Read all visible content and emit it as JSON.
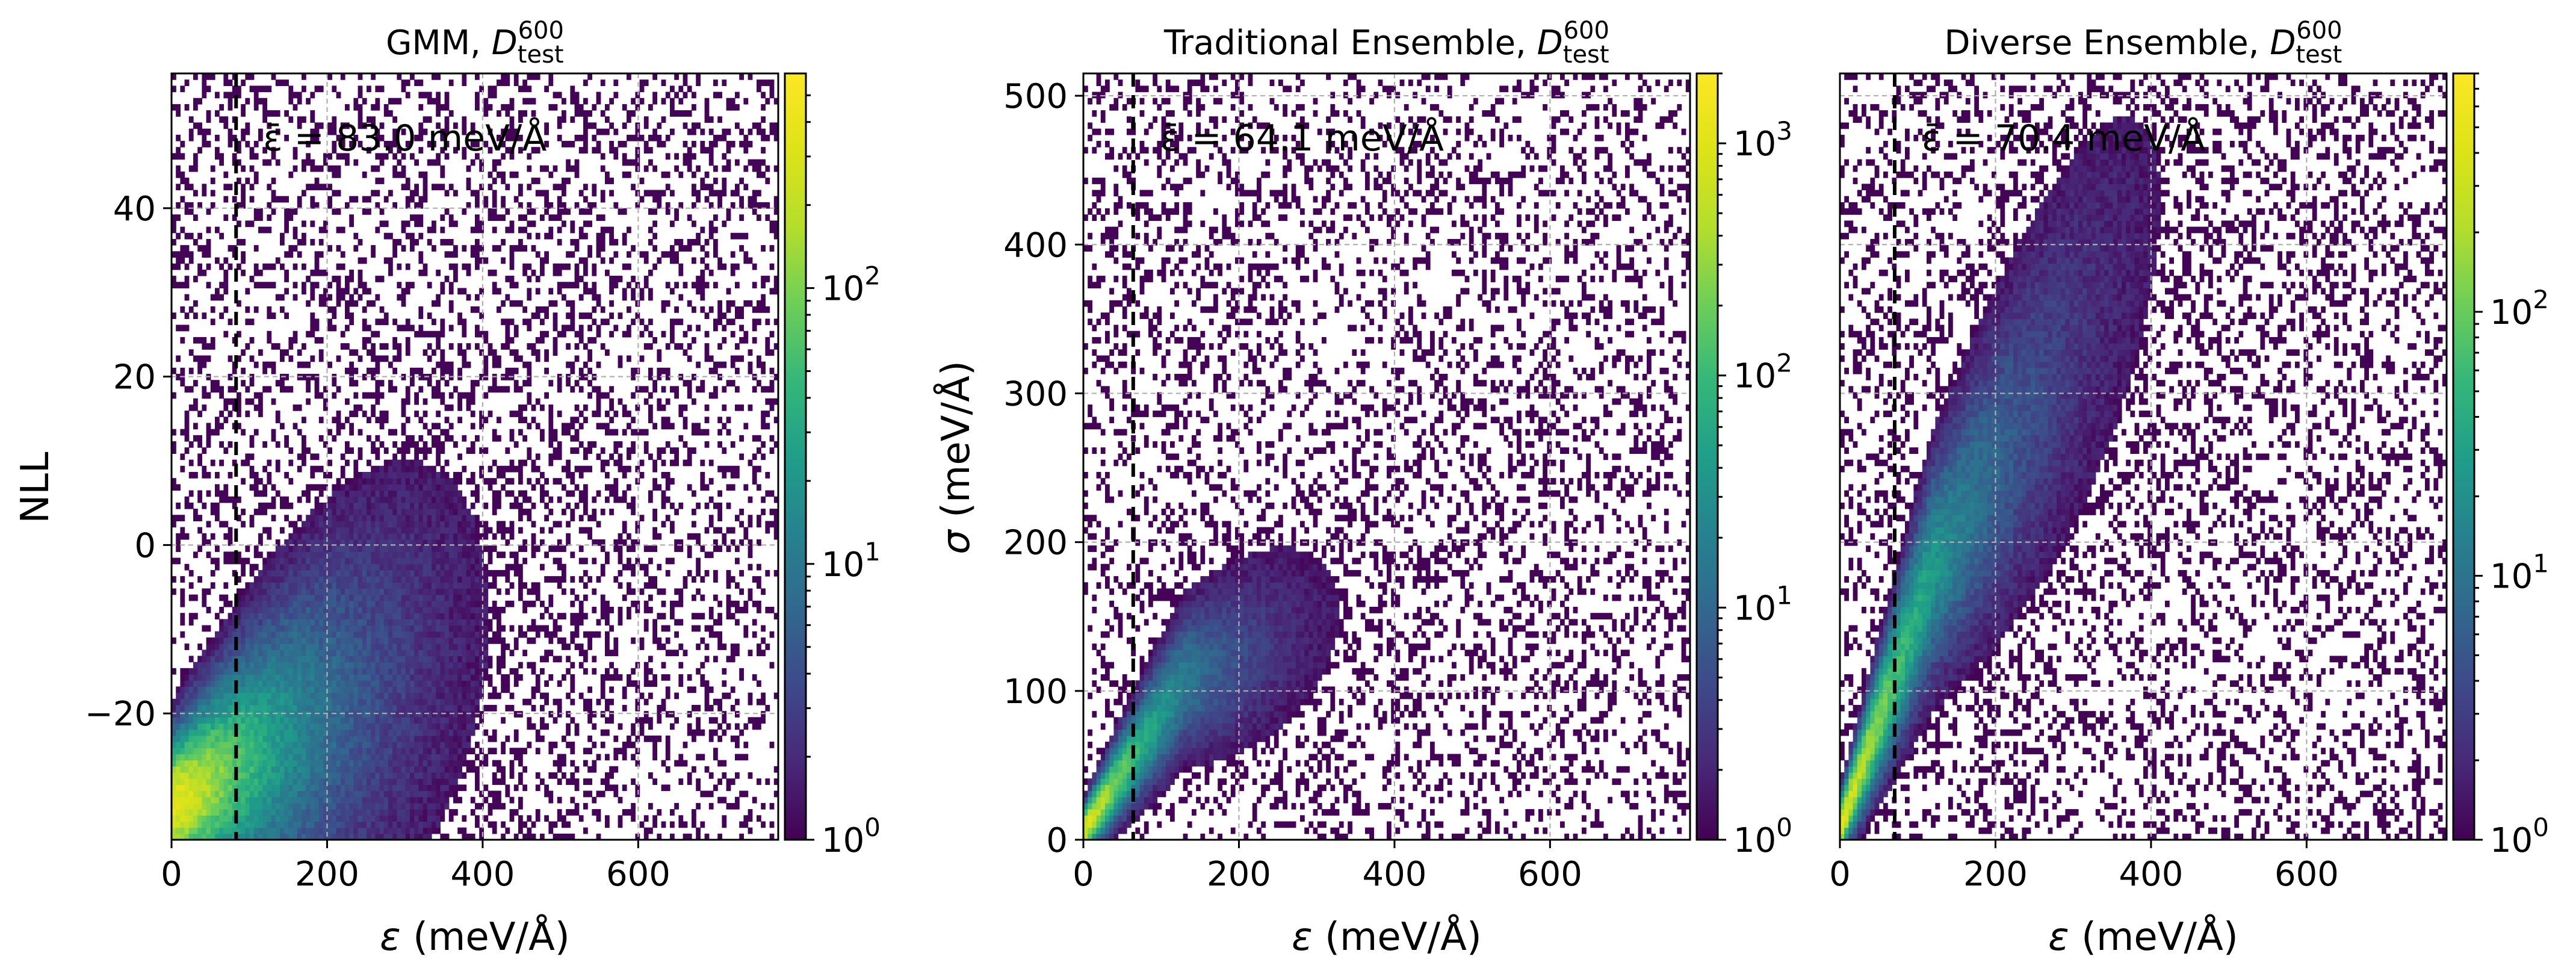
{
  "chart_data": [
    {
      "type": "heatmap",
      "title_prefix": "GMM, ",
      "title_var": "D",
      "title_sub": "test",
      "title_sup": "600",
      "xlabel_sym": "ε",
      "xlabel_unit": " (meV/Å)",
      "ylabel": "NLL",
      "xlim": [
        0,
        780
      ],
      "ylim": [
        -35,
        56
      ],
      "xticks": [
        0,
        200,
        400,
        600
      ],
      "yticks": [
        -20,
        0,
        20,
        40
      ],
      "ytick_labels": [
        "−20",
        "0",
        "20",
        "40"
      ],
      "mean_error": 83.0,
      "annotation": "ε̄ = 83.0 meV/Å",
      "colorbar": {
        "scale": "log",
        "min": 1,
        "max": 600,
        "tick_exps": [
          "0",
          "1",
          "2"
        ]
      },
      "density_model": "nll"
    },
    {
      "type": "heatmap",
      "title_prefix": "Traditional Ensemble, ",
      "title_var": "D",
      "title_sub": "test",
      "title_sup": "600",
      "xlabel_sym": "ε",
      "xlabel_unit": " (meV/Å)",
      "ylabel_sym": "σ",
      "ylabel_unit": " (meV/Å)",
      "xlim": [
        0,
        780
      ],
      "ylim": [
        0,
        515
      ],
      "xticks": [
        0,
        200,
        400,
        600
      ],
      "yticks": [
        0,
        100,
        200,
        300,
        400,
        500
      ],
      "ytick_labels": [
        "0",
        "100",
        "200",
        "300",
        "400",
        "500"
      ],
      "mean_error": 64.1,
      "annotation": "ε̄ = 64.1 meV/Å",
      "colorbar": {
        "scale": "log",
        "min": 1,
        "max": 2000,
        "tick_exps": [
          "0",
          "1",
          "2",
          "3"
        ]
      },
      "density_model": "trad"
    },
    {
      "type": "heatmap",
      "title_prefix": "Diverse Ensemble, ",
      "title_var": "D",
      "title_sub": "test",
      "title_sup": "600",
      "xlabel_sym": "ε",
      "xlabel_unit": " (meV/Å)",
      "xlim": [
        0,
        780
      ],
      "ylim": [
        0,
        515
      ],
      "xticks": [
        0,
        200,
        400,
        600
      ],
      "yticks": [],
      "ytick_labels": [],
      "mean_error": 70.4,
      "annotation": "ε̄ = 70.4 meV/Å",
      "colorbar": {
        "scale": "log",
        "min": 1,
        "max": 800,
        "tick_exps": [
          "0",
          "1",
          "2"
        ]
      },
      "density_model": "diverse"
    }
  ]
}
